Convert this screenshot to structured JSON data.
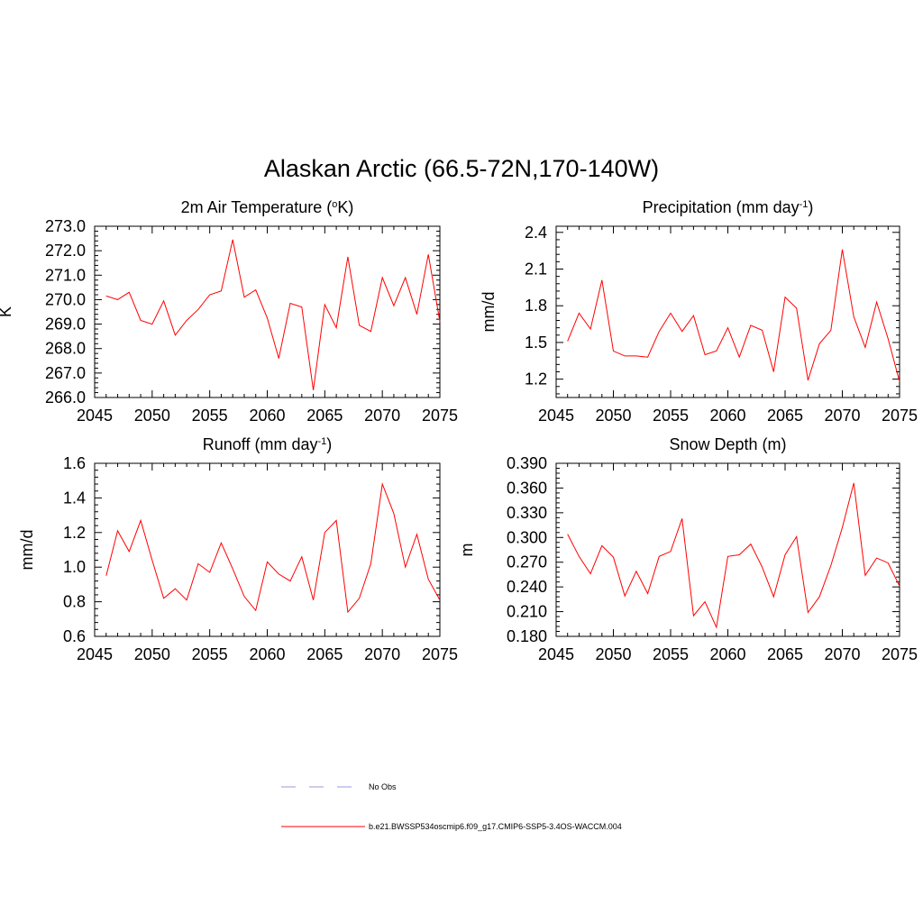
{
  "figure": {
    "title": "Alaskan Arctic (66.5-72N,170-140W)"
  },
  "legend": [
    {
      "label": "No Obs",
      "color": "#9999dd",
      "dashed": true
    },
    {
      "label": "b.e21.BWSSP534oscmip6.f09_g17.CMIP6-SSP5-3.4OS-WACCM.004",
      "color": "#ff0000",
      "dashed": false
    }
  ],
  "chart_data": [
    {
      "type": "line",
      "title": "2m Air Temperature (",
      "title_sup": "o",
      "title_after": "K)",
      "ylabel": "K",
      "xlim": [
        2045,
        2075
      ],
      "ylim": [
        266.0,
        273.0
      ],
      "x_ticks": [
        2045,
        2050,
        2055,
        2060,
        2065,
        2070,
        2075
      ],
      "y_ticks": [
        "266.0",
        "267.0",
        "268.0",
        "269.0",
        "270.0",
        "271.0",
        "272.0",
        "273.0"
      ],
      "color": "#ff0000",
      "x": [
        2046,
        2047,
        2048,
        2049,
        2050,
        2051,
        2052,
        2053,
        2054,
        2055,
        2056,
        2057,
        2058,
        2059,
        2060,
        2061,
        2062,
        2063,
        2064,
        2065,
        2066,
        2067,
        2068,
        2069,
        2070,
        2071,
        2072,
        2073,
        2074,
        2075
      ],
      "values": [
        270.15,
        270.0,
        270.3,
        269.15,
        269.0,
        269.95,
        268.55,
        269.15,
        269.6,
        270.2,
        270.35,
        272.45,
        270.1,
        270.4,
        269.25,
        267.6,
        269.85,
        269.7,
        266.3,
        269.8,
        268.85,
        271.75,
        268.95,
        268.7,
        270.9,
        269.75,
        270.9,
        269.4,
        271.85,
        269.1
      ]
    },
    {
      "type": "line",
      "title": "Precipitation (mm day",
      "title_sup": "-1",
      "title_after": ")",
      "ylabel": "mm/d",
      "xlim": [
        2045,
        2075
      ],
      "ylim": [
        1.05,
        2.45
      ],
      "x_ticks": [
        2045,
        2050,
        2055,
        2060,
        2065,
        2070,
        2075
      ],
      "y_ticks": [
        "1.2",
        "1.5",
        "1.8",
        "2.1",
        "2.4"
      ],
      "color": "#ff0000",
      "x": [
        2046,
        2047,
        2048,
        2049,
        2050,
        2051,
        2052,
        2053,
        2054,
        2055,
        2056,
        2057,
        2058,
        2059,
        2060,
        2061,
        2062,
        2063,
        2064,
        2065,
        2066,
        2067,
        2068,
        2069,
        2070,
        2071,
        2072,
        2073,
        2074,
        2075
      ],
      "values": [
        1.51,
        1.74,
        1.61,
        2.01,
        1.43,
        1.39,
        1.39,
        1.38,
        1.59,
        1.74,
        1.59,
        1.72,
        1.4,
        1.43,
        1.62,
        1.38,
        1.64,
        1.6,
        1.26,
        1.87,
        1.78,
        1.19,
        1.49,
        1.6,
        2.26,
        1.71,
        1.46,
        1.83,
        1.53,
        1.18
      ]
    },
    {
      "type": "line",
      "title": "Runoff (mm day",
      "title_sup": "-1",
      "title_after": ")",
      "ylabel": "mm/d",
      "xlim": [
        2045,
        2075
      ],
      "ylim": [
        0.6,
        1.6
      ],
      "x_ticks": [
        2045,
        2050,
        2055,
        2060,
        2065,
        2070,
        2075
      ],
      "y_ticks": [
        "0.6",
        "0.8",
        "1.0",
        "1.2",
        "1.4",
        "1.6"
      ],
      "color": "#ff0000",
      "x": [
        2046,
        2047,
        2048,
        2049,
        2050,
        2051,
        2052,
        2053,
        2054,
        2055,
        2056,
        2057,
        2058,
        2059,
        2060,
        2061,
        2062,
        2063,
        2064,
        2065,
        2066,
        2067,
        2068,
        2069,
        2070,
        2071,
        2072,
        2073,
        2074,
        2075
      ],
      "values": [
        0.95,
        1.21,
        1.09,
        1.27,
        1.04,
        0.82,
        0.875,
        0.81,
        1.02,
        0.97,
        1.14,
        0.99,
        0.83,
        0.75,
        1.03,
        0.96,
        0.92,
        1.06,
        0.81,
        1.2,
        1.27,
        0.74,
        0.82,
        1.02,
        1.48,
        1.31,
        1.0,
        1.19,
        0.93,
        0.81
      ]
    },
    {
      "type": "line",
      "title": "Snow Depth (m)",
      "title_sup": "",
      "title_after": "",
      "ylabel": "m",
      "xlim": [
        2045,
        2075
      ],
      "ylim": [
        0.18,
        0.39
      ],
      "x_ticks": [
        2045,
        2050,
        2055,
        2060,
        2065,
        2070,
        2075
      ],
      "y_ticks": [
        "0.180",
        "0.210",
        "0.240",
        "0.270",
        "0.300",
        "0.330",
        "0.360",
        "0.390"
      ],
      "color": "#ff0000",
      "x": [
        2046,
        2047,
        2048,
        2049,
        2050,
        2051,
        2052,
        2053,
        2054,
        2055,
        2056,
        2057,
        2058,
        2059,
        2060,
        2061,
        2062,
        2063,
        2064,
        2065,
        2066,
        2067,
        2068,
        2069,
        2070,
        2071,
        2072,
        2073,
        2074,
        2075
      ],
      "values": [
        0.304,
        0.277,
        0.256,
        0.29,
        0.276,
        0.229,
        0.259,
        0.232,
        0.277,
        0.283,
        0.323,
        0.205,
        0.222,
        0.191,
        0.277,
        0.279,
        0.292,
        0.264,
        0.228,
        0.279,
        0.301,
        0.209,
        0.228,
        0.266,
        0.312,
        0.366,
        0.254,
        0.275,
        0.269,
        0.241
      ]
    }
  ]
}
